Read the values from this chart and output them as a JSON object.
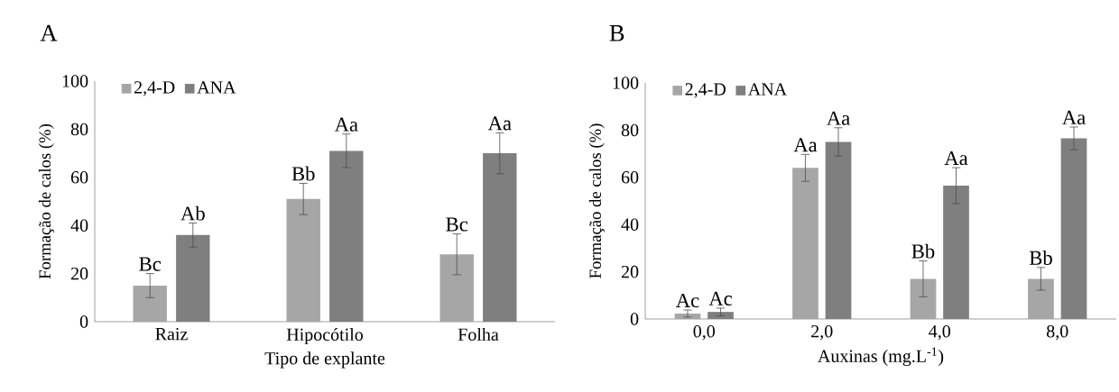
{
  "chart_data": [
    {
      "type": "bar",
      "title": "A",
      "xlabel": "Tipo  de explante",
      "ylabel": "Formação  de calos (%)",
      "categories": [
        "Raiz",
        "Hipocótilo",
        "Folha"
      ],
      "series": [
        {
          "name": "2,4-D",
          "color": "#a6a6a6",
          "values": [
            15,
            51,
            28
          ],
          "errors": [
            5,
            6.5,
            8.5
          ],
          "value_labels": [
            "Bc",
            "Bb",
            "Bc"
          ]
        },
        {
          "name": "ANA",
          "color": "#7f7f7f",
          "values": [
            36,
            71,
            70
          ],
          "errors": [
            5,
            7,
            8.5
          ],
          "value_labels": [
            "Ab",
            "Aa",
            "Aa"
          ]
        }
      ],
      "ylim": [
        0,
        100
      ],
      "yticks": [
        0,
        20,
        40,
        60,
        80,
        100
      ],
      "grid": false,
      "legend": "top left"
    },
    {
      "type": "bar",
      "title": "B",
      "xlabel": "Auxinas  (mg.L$^{-1}$)",
      "ylabel": "Formação  de calos (%)",
      "categories": [
        "0,0",
        "2,0",
        "4,0",
        "8,0"
      ],
      "series": [
        {
          "name": "2,4-D",
          "color": "#a6a6a6",
          "values": [
            2.3,
            64,
            17,
            17
          ],
          "errors": [
            1.5,
            5.7,
            7.6,
            4.8
          ],
          "value_labels": [
            "Ac",
            "Aa",
            "Bb",
            "Bb"
          ]
        },
        {
          "name": "ANA",
          "color": "#7f7f7f",
          "values": [
            3,
            75,
            56.5,
            76.5
          ],
          "errors": [
            1.6,
            6,
            7.6,
            4.8
          ],
          "value_labels": [
            "Ac",
            "Aa",
            "Aa",
            "Aa"
          ]
        }
      ],
      "ylim": [
        0,
        100
      ],
      "yticks": [
        0,
        20,
        40,
        60,
        80,
        100
      ],
      "grid": false,
      "legend": "top left"
    }
  ]
}
